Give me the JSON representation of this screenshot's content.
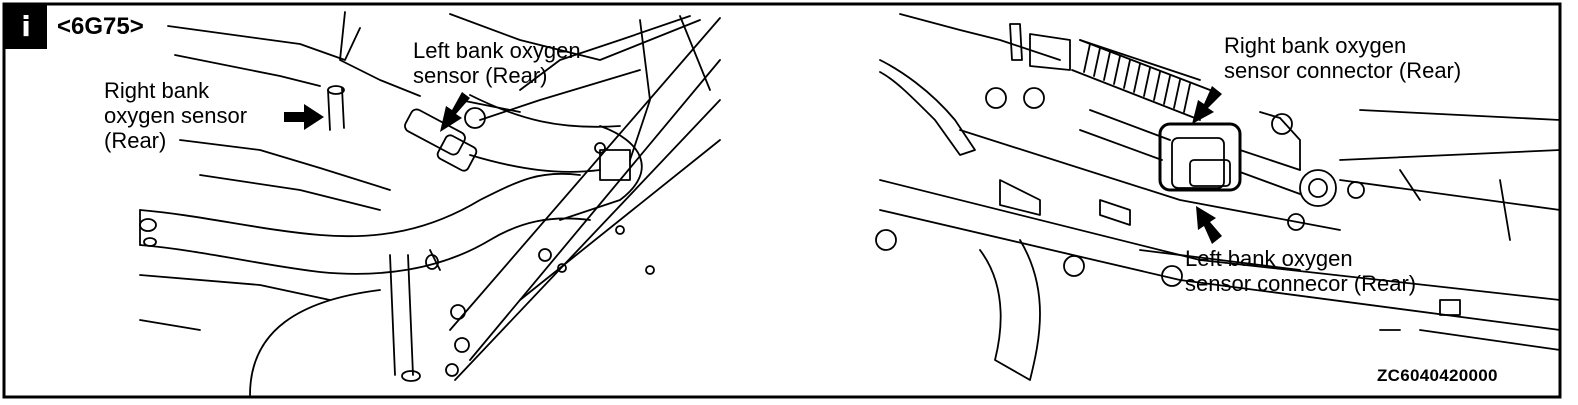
{
  "badge": {
    "text": "i",
    "icon": "info-icon"
  },
  "model": "<6G75>",
  "left_panel": {
    "right_bank_sensor_label": "Right bank\noxygen sensor\n(Rear)",
    "left_bank_sensor_label": "Left bank oxygen\nsensor (Rear)"
  },
  "right_panel": {
    "right_bank_connector_label": "Right bank oxygen\nsensor connector (Rear)",
    "left_bank_connector_label": "Left bank oxygen\nsensor connecor (Rear)"
  },
  "figure_code": "ZC6040420000",
  "colors": {
    "line": "#000000",
    "background": "#ffffff"
  }
}
